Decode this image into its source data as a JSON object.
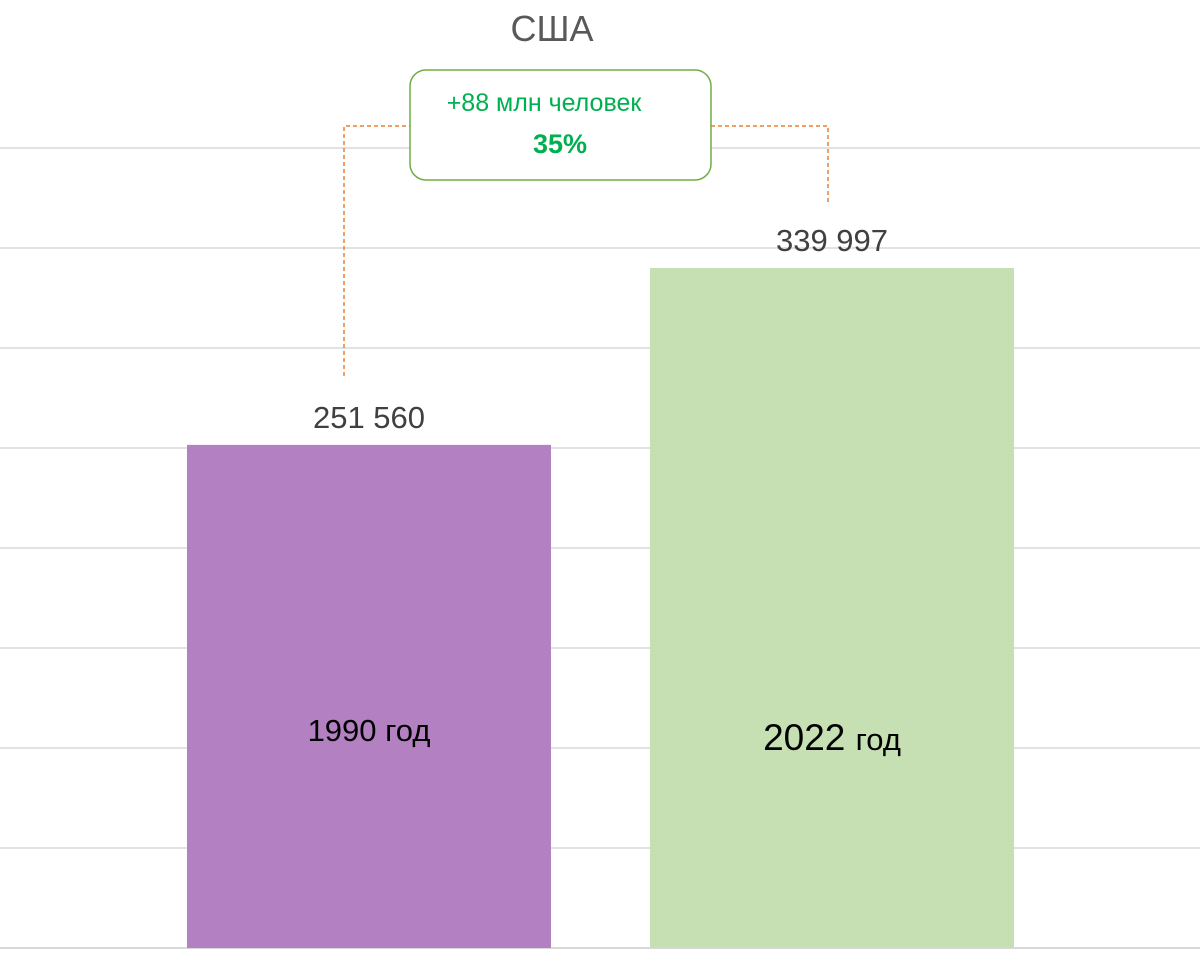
{
  "chart_data": {
    "type": "bar",
    "title": "США",
    "categories": [
      "1990 год",
      "2022 год"
    ],
    "category_parts": [
      {
        "year": "1990",
        "suffix": "год"
      },
      {
        "year": "2022",
        "suffix": "год"
      }
    ],
    "values": [
      251560,
      339997
    ],
    "value_labels": [
      "251 560",
      "339 997"
    ],
    "ylim": [
      0,
      400000
    ],
    "grid": true,
    "gridline_step": 50000,
    "colors": [
      "#b381c1",
      "#c6e0b4"
    ],
    "annotation": {
      "line1": "+88 млн человек",
      "line2": "35%",
      "text_color": "#00b050",
      "border_color": "#70ad47",
      "connector_color": "#ed7d31"
    }
  }
}
